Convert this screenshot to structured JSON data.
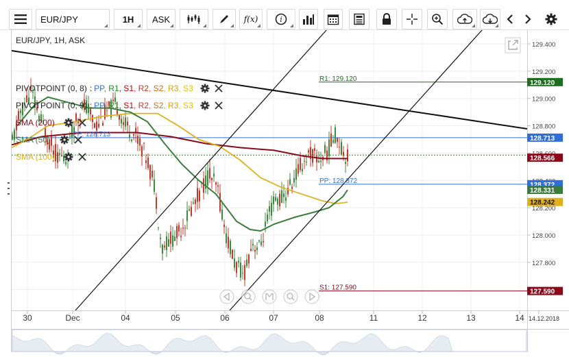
{
  "toolbar": {
    "symbol": "EUR/JPY",
    "interval": "1H",
    "price_type": "ASK",
    "icons": [
      "menu-icon",
      "candlestick-icon",
      "draw-icon",
      "function-icon",
      "info-icon",
      "indicators-icon",
      "calendar-icon",
      "news-icon",
      "lock-icon",
      "crosshair-icon",
      "zoom-icon",
      "upload-icon",
      "download-icon",
      "chevron-left-icon",
      "chevron-right-icon",
      "gear-icon"
    ]
  },
  "chart": {
    "header": "EUR/JPY, 1H, ASK",
    "indicators": [
      {
        "name": "PIVOTPOINT (0, 8)",
        "sep": ":",
        "levels": [
          "PP",
          "R1",
          "S1",
          "R2",
          "S2",
          "R3",
          "S3"
        ]
      },
      {
        "name": "PIVOTPOINT (0, 9)",
        "sep": ":",
        "levels": [
          "PP",
          "R1",
          "S1",
          "R2",
          "S2",
          "R3",
          "S3"
        ]
      },
      {
        "name": "SMA (200)"
      },
      {
        "name": "SMA (50)"
      },
      {
        "name": "SMA (100)"
      }
    ],
    "level_colors": {
      "PP": "#2e6fd8",
      "R1": "#1f8a1f",
      "S1": "#c00000",
      "R2": "#c0392b",
      "S2": "#d4691a",
      "R3": "#d4a017",
      "S3": "#e6c200"
    },
    "sma_colors": {
      "sma200": "#8b0a1a",
      "sma50": "#3a7d3a",
      "sma100": "#e0b020"
    },
    "line_labels": {
      "r1": "R1: 129.120",
      "pp_left": "PP: 128.713",
      "pp": "PP: 128.372",
      "s1": "S1: 127.590"
    }
  },
  "chart_data": {
    "type": "candlestick",
    "x_ticks": [
      "30",
      "Dec",
      "04",
      "05",
      "06",
      "07",
      "08",
      "11",
      "12",
      "13",
      "14",
      "14.12.2018"
    ],
    "y_ticks": [
      129.4,
      129.2,
      129.0,
      128.8,
      128.6,
      128.4,
      128.2,
      128.0,
      127.8,
      127.6
    ],
    "ylim": [
      127.47,
      129.5
    ],
    "price_badges": [
      {
        "value": "129.120",
        "color": "#1f6e1f"
      },
      {
        "value": "128.713",
        "color": "#2e6fd8"
      },
      {
        "value": "128.566",
        "color": "#8b0a1a"
      },
      {
        "value": "128.372",
        "color": "#2e6fd8"
      },
      {
        "value": "128.331",
        "color": "#3a7d3a"
      },
      {
        "value": "128.242",
        "color": "#e0b020"
      },
      {
        "value": "127.590",
        "color": "#8b0a1a"
      }
    ],
    "levels": {
      "r1": 129.12,
      "pp_old": 128.713,
      "pp": 128.372,
      "s1": 127.59
    },
    "last_price": 128.566
  }
}
